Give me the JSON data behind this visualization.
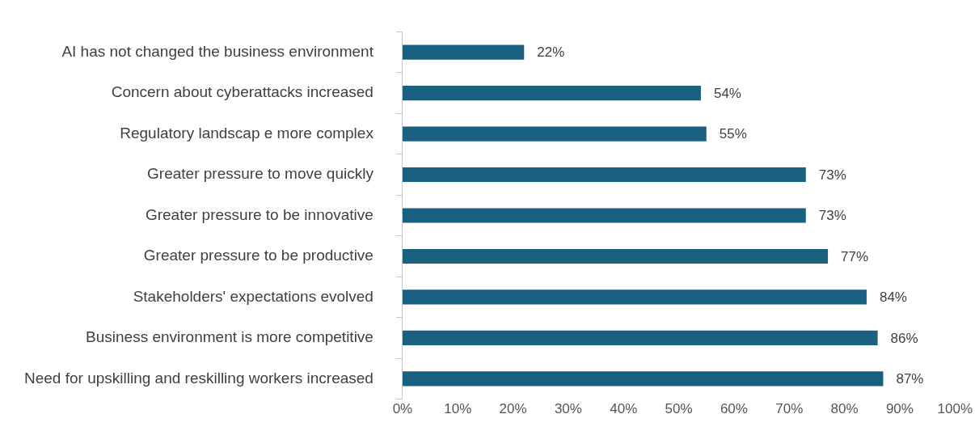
{
  "chart_data": {
    "type": "bar",
    "orientation": "horizontal",
    "categories": [
      "AI has not changed the business environment",
      "Concern about cyberattacks increased",
      "Regulatory landscap e more complex",
      "Greater pressure to move quickly",
      "Greater pressure to be innovative",
      "Greater pressure to be productive",
      "Stakeholders' expectations evolved",
      "Business environment is more competitive",
      "Need for upskilling and reskilling workers increased"
    ],
    "values": [
      22,
      54,
      55,
      73,
      73,
      77,
      84,
      86,
      87
    ],
    "value_labels": [
      "22%",
      "54%",
      "55%",
      "73%",
      "73%",
      "77%",
      "84%",
      "86%",
      "87%"
    ],
    "color": "#1a6080",
    "xlim": [
      0,
      100
    ],
    "xticks": [
      {
        "value": 0,
        "label": "0%"
      },
      {
        "value": 10,
        "label": "10%"
      },
      {
        "value": 20,
        "label": "20%"
      },
      {
        "value": 30,
        "label": "30%"
      },
      {
        "value": 40,
        "label": "40%"
      },
      {
        "value": 50,
        "label": "50%"
      },
      {
        "value": 60,
        "label": "60%"
      },
      {
        "value": 70,
        "label": "70%"
      },
      {
        "value": 80,
        "label": "80%"
      },
      {
        "value": 90,
        "label": "90%"
      },
      {
        "value": 100,
        "label": "100%"
      }
    ],
    "grid": false,
    "legend": false
  }
}
